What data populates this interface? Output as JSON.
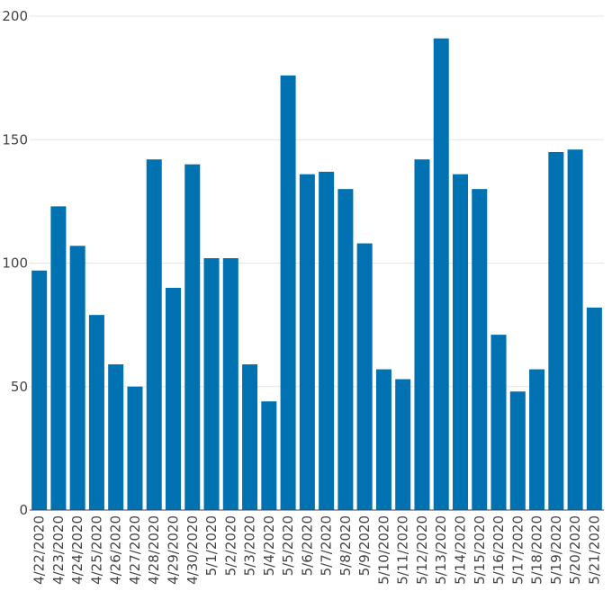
{
  "chart_data": {
    "type": "bar",
    "title": "",
    "xlabel": "",
    "ylabel": "",
    "categories": [
      "4/22/2020",
      "4/23/2020",
      "4/24/2020",
      "4/25/2020",
      "4/26/2020",
      "4/27/2020",
      "4/28/2020",
      "4/29/2020",
      "4/30/2020",
      "5/1/2020",
      "5/2/2020",
      "5/3/2020",
      "5/4/2020",
      "5/5/2020",
      "5/6/2020",
      "5/7/2020",
      "5/8/2020",
      "5/9/2020",
      "5/10/2020",
      "5/11/2020",
      "5/12/2020",
      "5/13/2020",
      "5/14/2020",
      "5/15/2020",
      "5/16/2020",
      "5/17/2020",
      "5/18/2020",
      "5/19/2020",
      "5/20/2020",
      "5/21/2020"
    ],
    "values": [
      97,
      123,
      107,
      79,
      59,
      50,
      142,
      90,
      140,
      102,
      102,
      59,
      44,
      176,
      136,
      137,
      130,
      108,
      57,
      53,
      142,
      191,
      136,
      130,
      71,
      48,
      57,
      145,
      146,
      82
    ],
    "ylim": [
      0,
      200
    ],
    "yticks": [
      0,
      50,
      100,
      150,
      200
    ],
    "grid": true,
    "bar_color": "#0072b2"
  }
}
